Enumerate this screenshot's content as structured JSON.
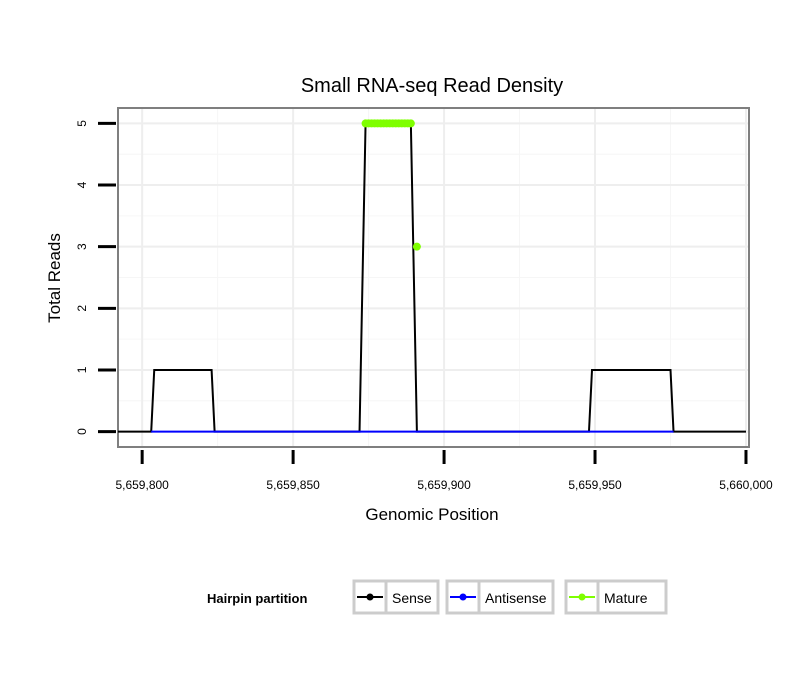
{
  "chart_data": {
    "type": "line",
    "title": "Small RNA-seq Read Density",
    "xlabel": "Genomic Position",
    "ylabel": "Total Reads",
    "xlim": [
      5659792,
      5660001
    ],
    "ylim": [
      -0.25,
      5.25
    ],
    "xticks": [
      5659800,
      5659850,
      5659900,
      5659950,
      5660000
    ],
    "xtick_labels": [
      "5,659,800",
      "5,659,850",
      "5,659,900",
      "5,659,950",
      "5,660,000"
    ],
    "yticks": [
      0,
      1,
      2,
      3,
      4,
      5
    ],
    "ytick_labels": [
      "0",
      "1",
      "2",
      "3",
      "4",
      "5"
    ],
    "grid": true,
    "legend_title": "Hairpin partition",
    "legend_position": "bottom",
    "series": [
      {
        "name": "Sense",
        "color": "#000000",
        "style": "line",
        "x": [
          5659792,
          5659803,
          5659804,
          5659823,
          5659824,
          5659872,
          5659874,
          5659889,
          5659891,
          5659948,
          5659949,
          5659975,
          5659976,
          5660000
        ],
        "y": [
          0,
          0,
          1,
          1,
          0,
          0,
          5,
          5,
          0,
          0,
          1,
          1,
          0,
          0
        ]
      },
      {
        "name": "Antisense",
        "color": "#0000ff",
        "style": "line",
        "x": [
          5659803,
          5659824,
          5659872,
          5659891,
          5659948,
          5659976
        ],
        "y": [
          0,
          0,
          0,
          0,
          0,
          0
        ]
      },
      {
        "name": "Mature",
        "color": "#7fff00",
        "style": "points",
        "x": [
          5659874,
          5659875,
          5659876,
          5659877,
          5659878,
          5659879,
          5659880,
          5659881,
          5659882,
          5659883,
          5659884,
          5659885,
          5659886,
          5659887,
          5659888,
          5659889,
          5659891
        ],
        "y": [
          5,
          5,
          5,
          5,
          5,
          5,
          5,
          5,
          5,
          5,
          5,
          5,
          5,
          5,
          5,
          5,
          3
        ]
      }
    ]
  }
}
